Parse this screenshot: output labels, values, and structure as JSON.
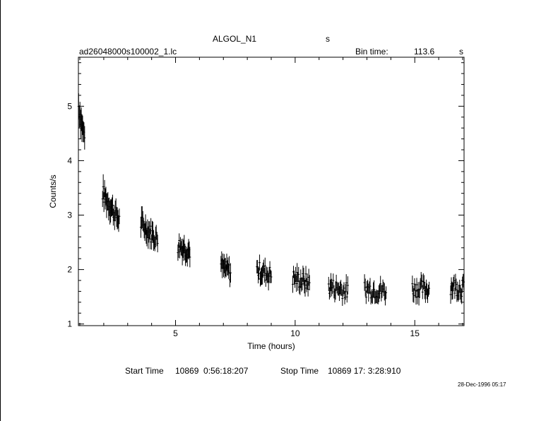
{
  "header": {
    "object": "ALGOL_N1",
    "object_unit": "s",
    "filename": "ad26048000s100002_1.lc",
    "bin_label": "Bin time:",
    "bin_value": "113.6",
    "bin_unit": "s"
  },
  "footer": {
    "start_label": "Start Time",
    "start_value": "10869  0:56:18:207",
    "stop_label": "Stop Time",
    "stop_value": "10869 17: 3:28:910",
    "timestamp": "28-Dec-1996 05:17"
  },
  "chart_data": {
    "type": "scatter",
    "title": "",
    "xlabel": "Time (hours)",
    "ylabel": "Counts/s",
    "xlim": [
      0.94,
      17.06
    ],
    "ylim": [
      0.97,
      5.9
    ],
    "x_major_ticks": [
      5,
      10,
      15
    ],
    "y_major_ticks": [
      1,
      2,
      3,
      4,
      5
    ],
    "error_bars": true,
    "segments": [
      {
        "start": 0.95,
        "end": 1.2,
        "level_start": 5.0,
        "level_end": 4.4,
        "n": 10
      },
      {
        "start": 1.95,
        "end": 2.65,
        "level_start": 3.4,
        "level_end": 2.9,
        "n": 26
      },
      {
        "start": 3.55,
        "end": 4.25,
        "level_start": 2.85,
        "level_end": 2.55,
        "n": 26
      },
      {
        "start": 5.1,
        "end": 5.6,
        "level_start": 2.45,
        "level_end": 2.35,
        "n": 20
      },
      {
        "start": 6.9,
        "end": 7.3,
        "level_start": 2.05,
        "level_end": 1.95,
        "n": 16
      },
      {
        "start": 8.4,
        "end": 9.0,
        "level_start": 2.0,
        "level_end": 1.9,
        "n": 22
      },
      {
        "start": 9.9,
        "end": 10.6,
        "level_start": 1.85,
        "level_end": 1.75,
        "n": 24
      },
      {
        "start": 11.4,
        "end": 12.2,
        "level_start": 1.7,
        "level_end": 1.6,
        "n": 26
      },
      {
        "start": 12.9,
        "end": 13.8,
        "level_start": 1.65,
        "level_end": 1.6,
        "n": 28
      },
      {
        "start": 14.9,
        "end": 15.6,
        "level_start": 1.65,
        "level_end": 1.65,
        "n": 24
      },
      {
        "start": 16.5,
        "end": 17.05,
        "level_start": 1.7,
        "level_end": 1.65,
        "n": 20
      }
    ],
    "point_error": 0.14
  }
}
